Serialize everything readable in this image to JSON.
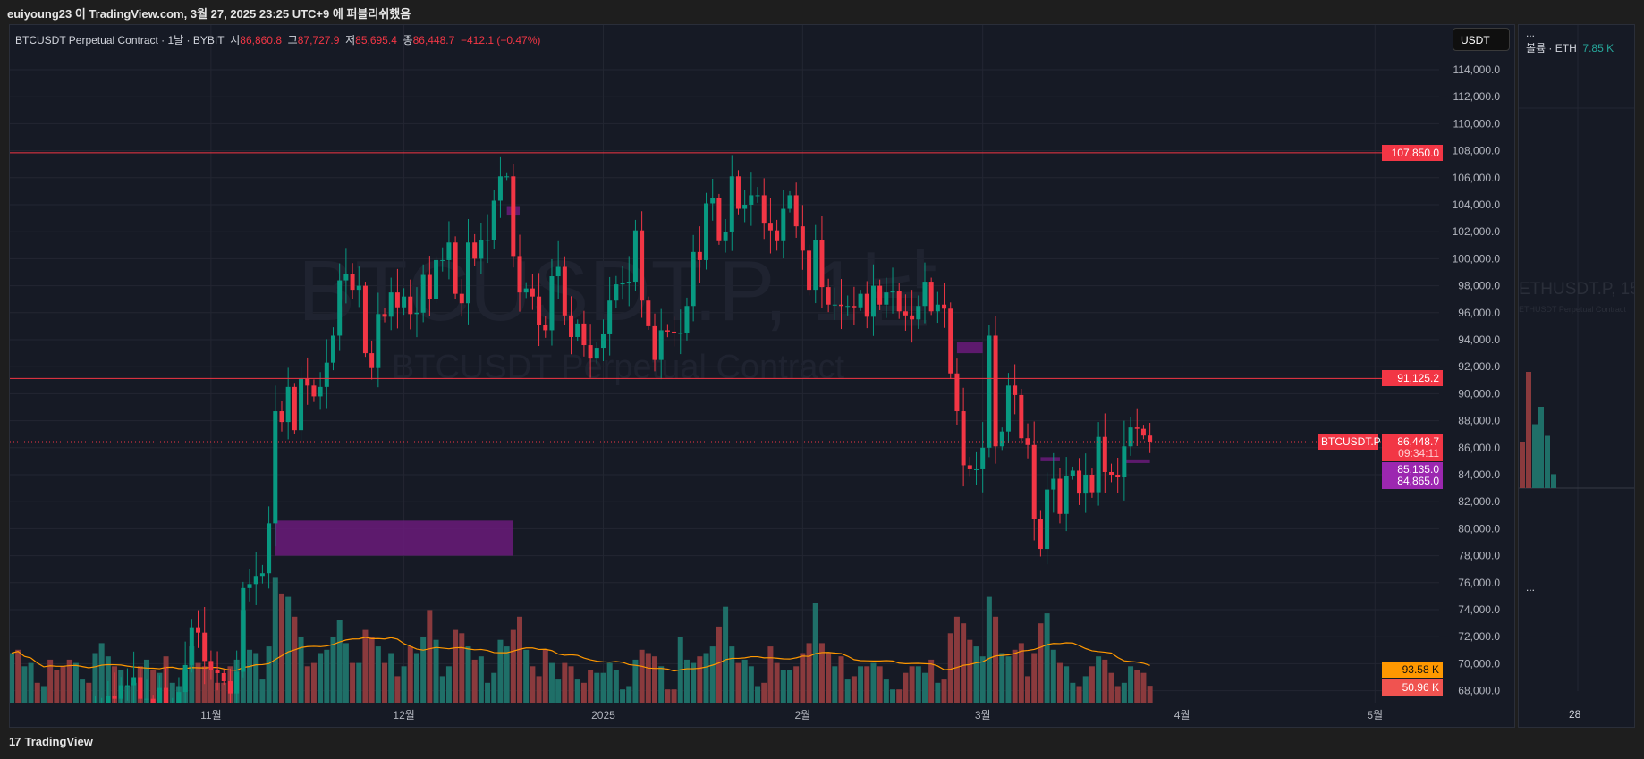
{
  "header": {
    "publish_text": "euiyoung23 이 TradingView.com, 3월 27, 2025 23:25 UTC+9 에 퍼블리쉬했음"
  },
  "legend": {
    "symbol": "BTCUSDT Perpetual Contract · 1날 · BYBIT",
    "o_label": "시",
    "o": "86,860.8",
    "h_label": "고",
    "h": "87,727.9",
    "l_label": "저",
    "l": "85,695.4",
    "c_label": "종",
    "c": "86,448.7",
    "change": "−412.1 (−0.47%)"
  },
  "currency": "USDT",
  "watermark": {
    "title": "BTCUSDT.P, 1날",
    "subtitle": "BTCUSDT Perpetual Contract"
  },
  "price_tags": {
    "level_high": "107,850.0",
    "level_mid": "91,125.2",
    "symbol_tag": "BTCUSDT.P",
    "last_price": "86,448.7",
    "countdown": "09:34:11",
    "purple_high": "85,135.0",
    "purple_low": "84,865.0",
    "vol_ma": "93.58 K",
    "volume": "50.96 K"
  },
  "colors": {
    "up": "#089981",
    "down": "#f23645",
    "purple": "#9c27b0",
    "ma": "#ff9800",
    "bg": "#161a25"
  },
  "side_panel": {
    "menu": "...",
    "volume_label": "볼륨 · ETH",
    "volume_value": "7.85 K",
    "watermark_title": "ETHUSDT.P, 15",
    "watermark_sub": "ETHUSDT Perpetual Contract",
    "lower_menu": "...",
    "time_label": "28",
    "volumes": [
      40,
      100,
      55,
      70,
      45,
      12
    ]
  },
  "footer": {
    "brand": "TradingView"
  },
  "chart_data": {
    "type": "candlestick",
    "start_date": "2024-10-01",
    "interval": "1D",
    "price_ticks": [
      68000,
      70000,
      72000,
      74000,
      76000,
      78000,
      80000,
      82000,
      84000,
      86000,
      88000,
      90000,
      92000,
      94000,
      96000,
      98000,
      100000,
      102000,
      104000,
      106000,
      108000,
      110000,
      112000,
      114000
    ],
    "price_tick_labels": [
      "68,000.0",
      "70,000.0",
      "72,000.0",
      "74,000.0",
      "76,000.0",
      "78,000.0",
      "80,000.0",
      "82,000.0",
      "84,000.0",
      "86,000.0",
      "88,000.0",
      "90,000.0",
      "92,000.0",
      "94,000.0",
      "96,000.0",
      "98,000.0",
      "100,000.0",
      "102,000.0",
      "104,000.0",
      "106,000.0",
      "108,000.0",
      "110,000.0",
      "112,000.0",
      "114,000.0"
    ],
    "time_ticks": [
      {
        "label": "11월",
        "day": 31
      },
      {
        "label": "12월",
        "day": 61
      },
      {
        "label": "2025",
        "day": 92
      },
      {
        "label": "2월",
        "day": 123
      },
      {
        "label": "3월",
        "day": 151
      },
      {
        "label": "4월",
        "day": 182
      },
      {
        "label": "5월",
        "day": 212
      }
    ],
    "horizontal_levels": [
      107850,
      91125.2
    ],
    "last_price": 86448.7,
    "zones": [
      {
        "from_day": 41,
        "to_day": 78,
        "low": 78000,
        "high": 80600
      },
      {
        "from_day": 77,
        "to_day": 79,
        "low": 103200,
        "high": 103900
      },
      {
        "from_day": 147,
        "to_day": 151,
        "low": 93000,
        "high": 93800
      },
      {
        "from_day": 160,
        "to_day": 163,
        "low": 85000,
        "high": 85300
      },
      {
        "from_day": 173,
        "to_day": 177,
        "low": 84865,
        "high": 85135
      }
    ],
    "closes_k": [
      60.8,
      60.6,
      60.7,
      62.1,
      62.0,
      62.8,
      62.2,
      62.1,
      60.6,
      60.3,
      62.4,
      63.2,
      62.9,
      66.0,
      67.0,
      67.6,
      67.4,
      68.4,
      68.4,
      69.0,
      67.4,
      67.4,
      66.7,
      68.2,
      66.6,
      67.0,
      67.9,
      69.9,
      72.7,
      72.3,
      70.2,
      69.5,
      69.3,
      68.7,
      67.8,
      69.4,
      75.6,
      75.9,
      76.5,
      76.7,
      80.4,
      88.7,
      87.9,
      90.5,
      87.3,
      91.1,
      90.6,
      89.8,
      90.5,
      92.3,
      94.3,
      98.4,
      98.9,
      97.7,
      98.0,
      93.0,
      91.9,
      95.9,
      95.7,
      97.5,
      96.4,
      97.2,
      95.9,
      96.0,
      98.8,
      97.0,
      99.9,
      99.9,
      101.2,
      97.4,
      96.7,
      101.2,
      100.0,
      101.4,
      101.4,
      104.3,
      106.1,
      106.1,
      100.2,
      97.5,
      97.8,
      97.2,
      95.1,
      94.7,
      98.7,
      99.4,
      95.8,
      94.2,
      95.2,
      93.6,
      92.6,
      93.4,
      94.4,
      96.9,
      98.1,
      98.2,
      98.3,
      102.1,
      96.9,
      95.0,
      92.5,
      94.7,
      94.6,
      94.5,
      94.5,
      96.5,
      100.5,
      99.9,
      104.1,
      104.5,
      101.3,
      102.0,
      106.1,
      103.7,
      104.0,
      104.7,
      104.7,
      102.6,
      102.1,
      101.3,
      103.7,
      104.7,
      102.4,
      100.6,
      97.7,
      101.4,
      97.9,
      96.6,
      96.6,
      96.5,
      96.5,
      96.4,
      97.4,
      95.7,
      98.0,
      96.6,
      97.5,
      97.6,
      96.1,
      95.8,
      95.5,
      96.5,
      98.3,
      96.1,
      96.6,
      96.3,
      91.5,
      88.7,
      84.7,
      84.4,
      84.4,
      86.0,
      94.3,
      86.1,
      87.2,
      90.6,
      89.9,
      86.7,
      86.2,
      80.7,
      78.5,
      82.9,
      83.7,
      81.1,
      83.9,
      84.3,
      82.6,
      84.0,
      82.7,
      86.8,
      84.2,
      84.0,
      83.8,
      86.1,
      87.5,
      87.4,
      86.9,
      86.45
    ],
    "volumes_k": [
      150,
      160,
      110,
      120,
      60,
      50,
      130,
      100,
      110,
      130,
      120,
      70,
      60,
      150,
      180,
      140,
      110,
      100,
      50,
      60,
      110,
      130,
      100,
      90,
      140,
      60,
      50,
      100,
      170,
      120,
      110,
      100,
      60,
      60,
      110,
      130,
      280,
      160,
      150,
      70,
      170,
      380,
      330,
      320,
      260,
      200,
      110,
      120,
      150,
      160,
      200,
      250,
      180,
      120,
      120,
      220,
      200,
      170,
      120,
      150,
      80,
      110,
      170,
      150,
      200,
      280,
      190,
      80,
      110,
      220,
      210,
      170,
      130,
      140,
      60,
      90,
      190,
      170,
      220,
      260,
      160,
      110,
      80,
      160,
      120,
      70,
      120,
      110,
      70,
      60,
      100,
      90,
      90,
      120,
      100,
      40,
      50,
      130,
      160,
      150,
      140,
      110,
      40,
      40,
      200,
      130,
      120,
      140,
      150,
      170,
      230,
      290,
      170,
      120,
      130,
      110,
      50,
      60,
      170,
      120,
      100,
      100,
      110,
      150,
      180,
      300,
      180,
      150,
      110,
      140,
      70,
      80,
      110,
      110,
      120,
      110,
      70,
      40,
      40,
      90,
      110,
      110,
      90,
      130,
      60,
      70,
      210,
      260,
      240,
      190,
      170,
      140,
      320,
      260,
      150,
      140,
      160,
      180,
      80,
      150,
      240,
      270,
      160,
      120,
      110,
      60,
      50,
      80,
      110,
      140,
      130,
      90,
      50,
      60,
      110,
      100,
      90,
      51
    ]
  }
}
